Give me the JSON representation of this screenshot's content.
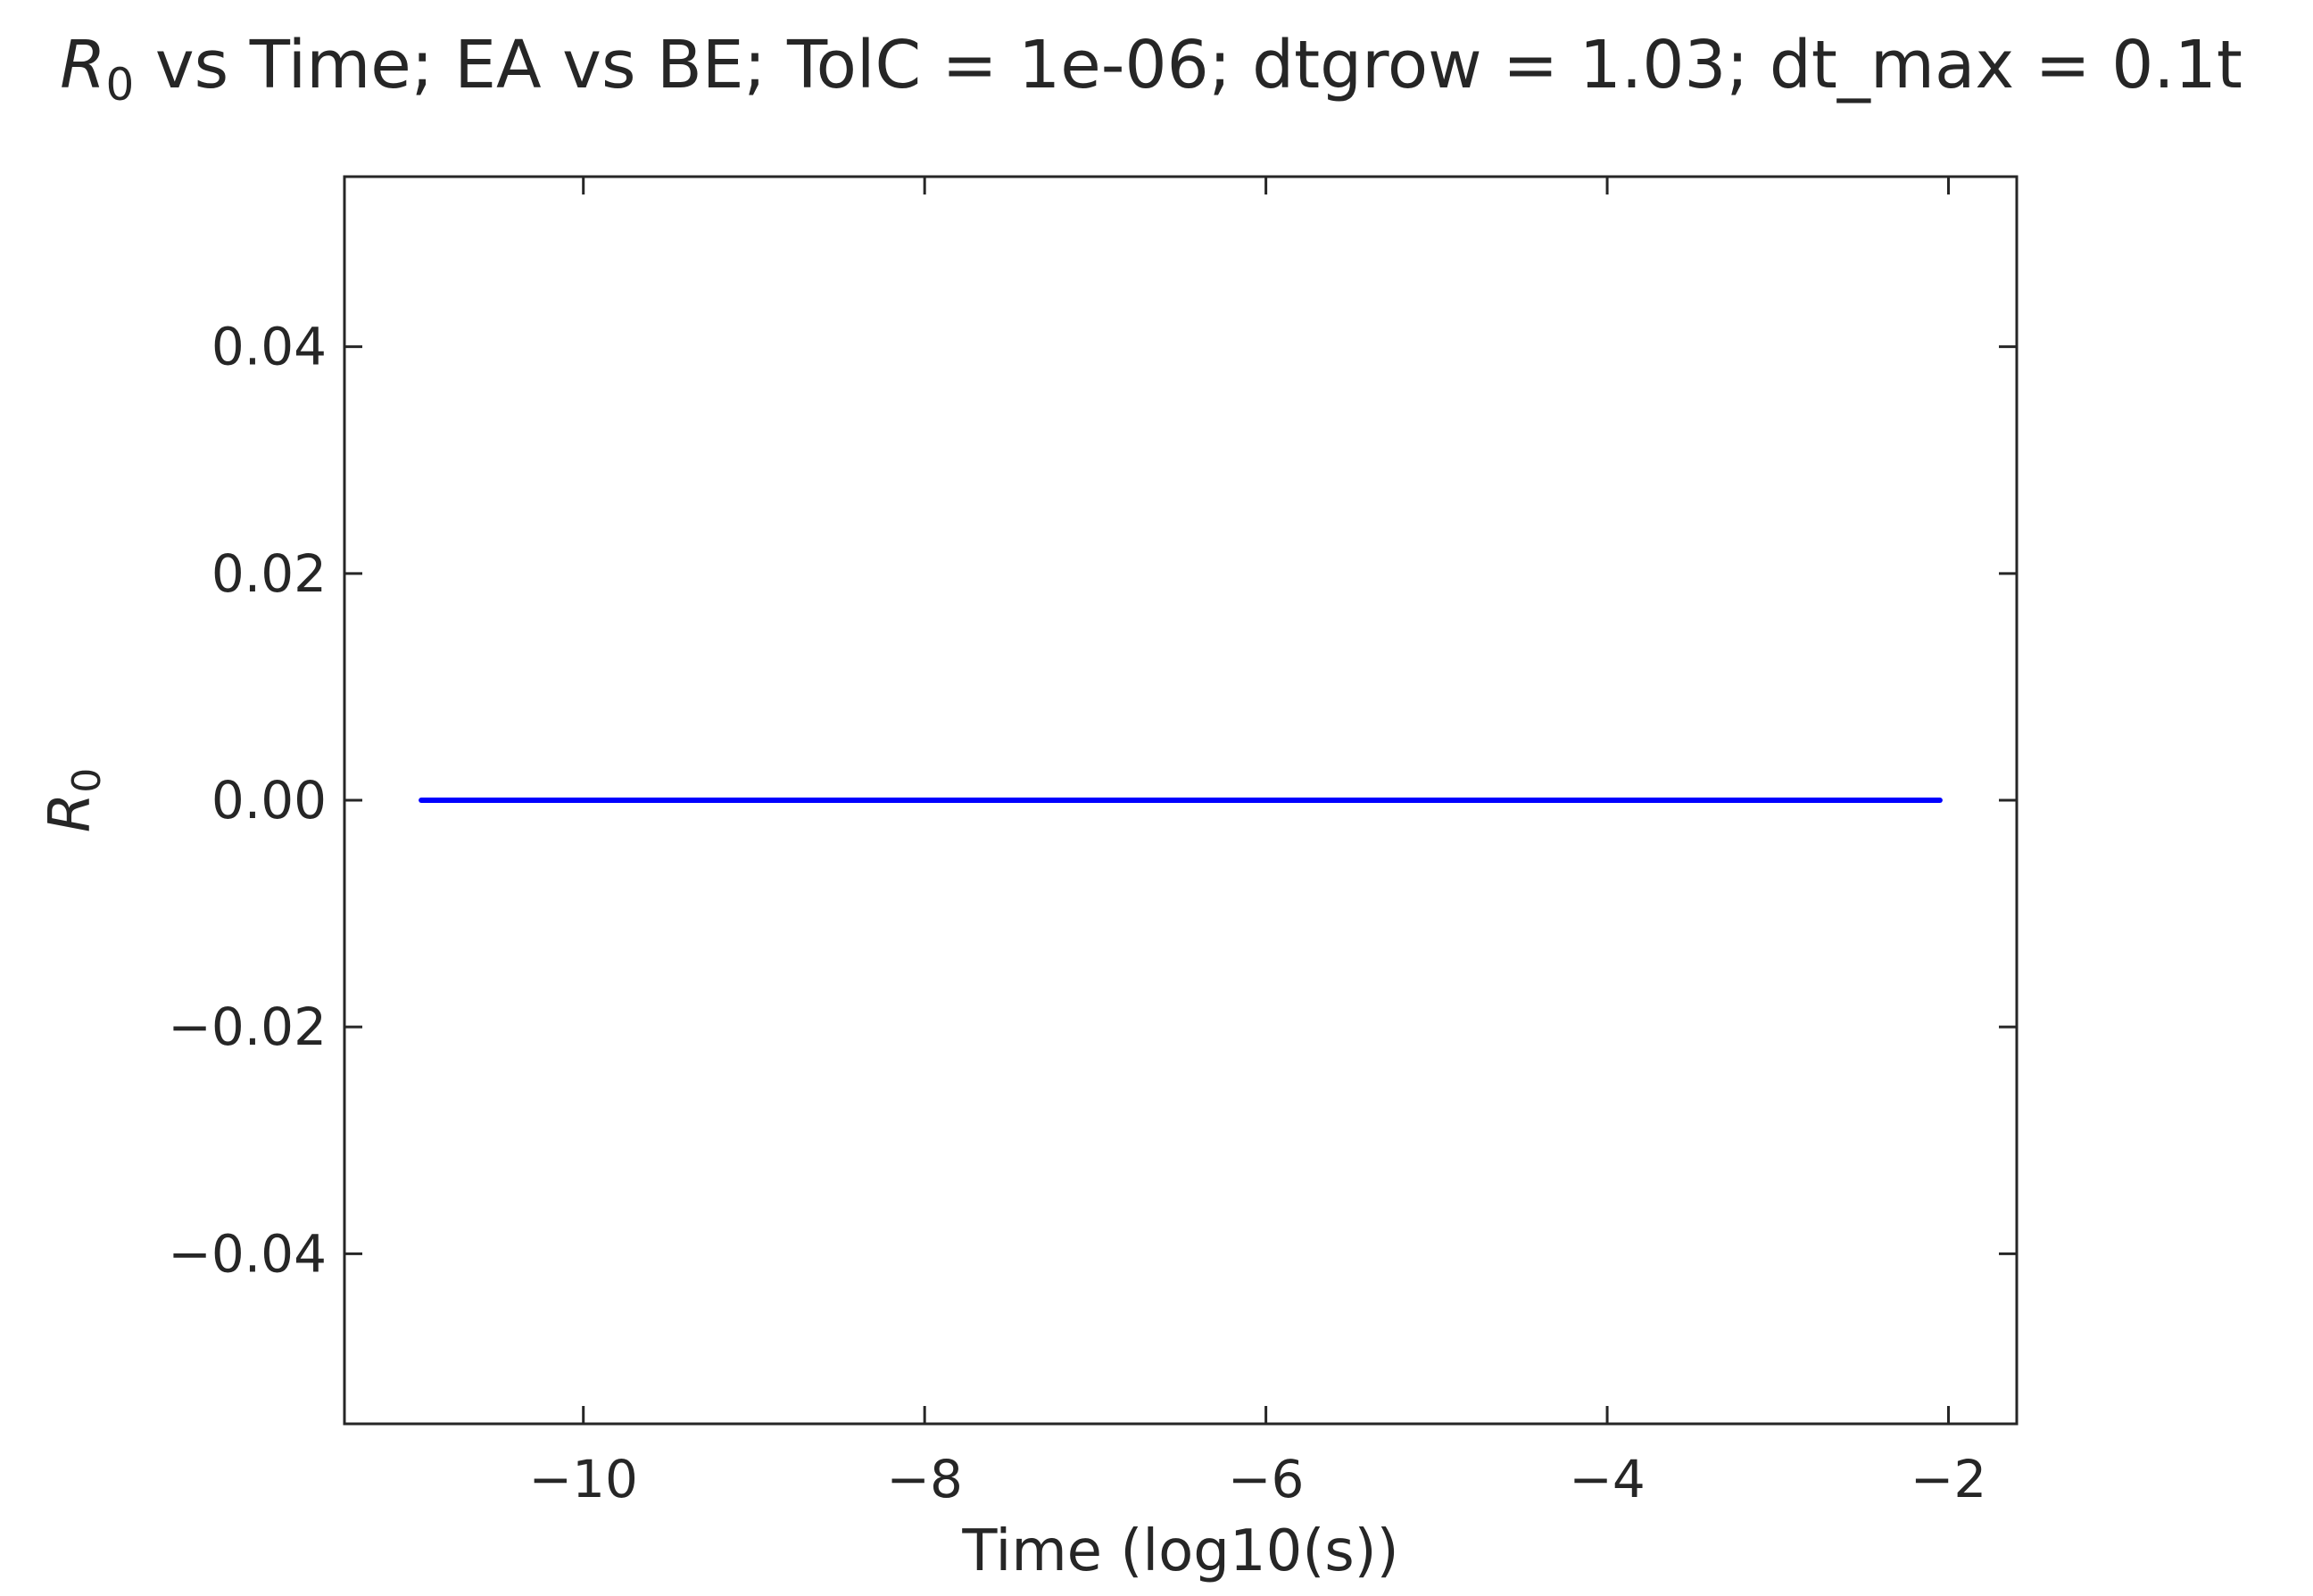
{
  "chart_data": {
    "type": "line",
    "title": "R̄₀ vs Time; EA vs BE; TolC = 1e-06; dtgrow = 1.03; dt_max = 0.1t",
    "title_parts": {
      "symbol": "R",
      "subscript": "0",
      "rest": " vs Time; EA vs BE; TolC = 1e-06; dtgrow = 1.03; dt_max = 0.1t"
    },
    "xlabel": "Time (log10(s))",
    "ylabel": "R̄₀",
    "ylabel_parts": {
      "symbol": "R",
      "subscript": "0"
    },
    "xlim": [
      -11.4,
      -1.6
    ],
    "ylim": [
      -0.055,
      0.055
    ],
    "x_ticks": [
      -10,
      -8,
      -6,
      -4,
      -2
    ],
    "x_tick_labels": [
      "−10",
      "−8",
      "−6",
      "−4",
      "−2"
    ],
    "y_ticks": [
      0.04,
      0.02,
      0.0,
      -0.02,
      -0.04
    ],
    "y_tick_labels": [
      "0.04",
      "0.02",
      "0.00",
      "−0.02",
      "−0.04"
    ],
    "grid": false,
    "series": [
      {
        "x": [
          -10.95,
          -2.05
        ],
        "y": [
          0.0,
          0.0
        ],
        "color": "#0000ff"
      }
    ]
  }
}
